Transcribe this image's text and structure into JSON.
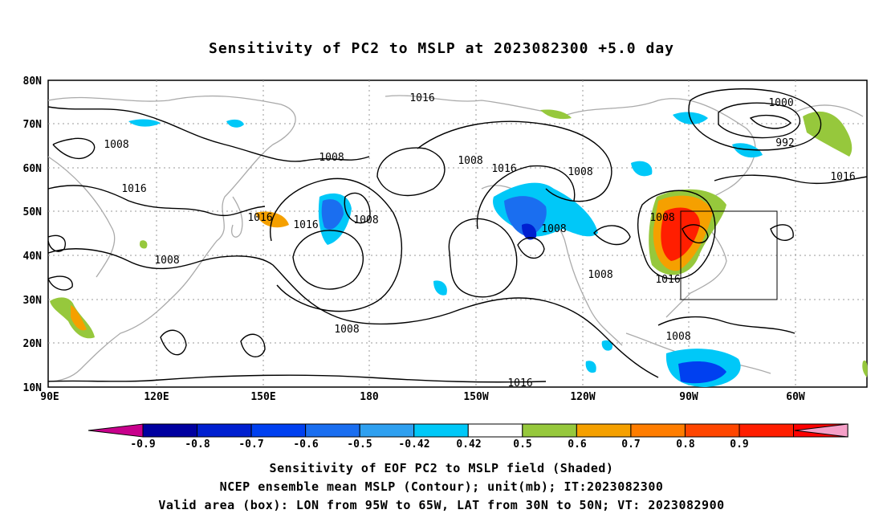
{
  "title": "Sensitivity of PC2 to MSLP at 2023082300 +5.0 day",
  "map": {
    "lat_labels": [
      "80N",
      "70N",
      "60N",
      "50N",
      "40N",
      "30N",
      "20N",
      "10N"
    ],
    "lon_labels": [
      "90E",
      "120E",
      "150E",
      "180",
      "150W",
      "120W",
      "90W",
      "60W"
    ],
    "contour_labels": [
      {
        "text": "1016"
      },
      {
        "text": "1000"
      },
      {
        "text": "992"
      },
      {
        "text": "1008"
      },
      {
        "text": "1016"
      },
      {
        "text": "1008"
      },
      {
        "text": "1008"
      },
      {
        "text": "1016"
      },
      {
        "text": "1008"
      },
      {
        "text": "1016"
      },
      {
        "text": "1016"
      },
      {
        "text": "1008"
      },
      {
        "text": "1008"
      },
      {
        "text": "1016"
      },
      {
        "text": "1008"
      },
      {
        "text": "1008"
      },
      {
        "text": "1008"
      },
      {
        "text": "1016"
      },
      {
        "text": "1008"
      },
      {
        "text": "1008"
      },
      {
        "text": "1016"
      }
    ]
  },
  "colorbar": {
    "colors": [
      "#c8008c",
      "#0000a0",
      "#0020d0",
      "#0040f0",
      "#1a6ef0",
      "#2fa0f0",
      "#00c8f8",
      "#ffffff",
      "#96c83c",
      "#f5a000",
      "#ff7d00",
      "#ff4600",
      "#ff1e00",
      "#ff0000",
      "#f5a0c8"
    ],
    "labels": [
      "-0.9",
      "-0.8",
      "-0.7",
      "-0.6",
      "-0.5",
      "-0.42",
      "0.42",
      "0.5",
      "0.6",
      "0.7",
      "0.8",
      "0.9"
    ]
  },
  "captions": [
    "Sensitivity of EOF PC2 to MSLP field (Shaded)",
    "NCEP ensemble mean MSLP (Contour); unit(mb); IT:2023082300",
    "Valid area (box): LON from 95W to 65W, LAT from 30N to 50N; VT: 2023082900"
  ]
}
